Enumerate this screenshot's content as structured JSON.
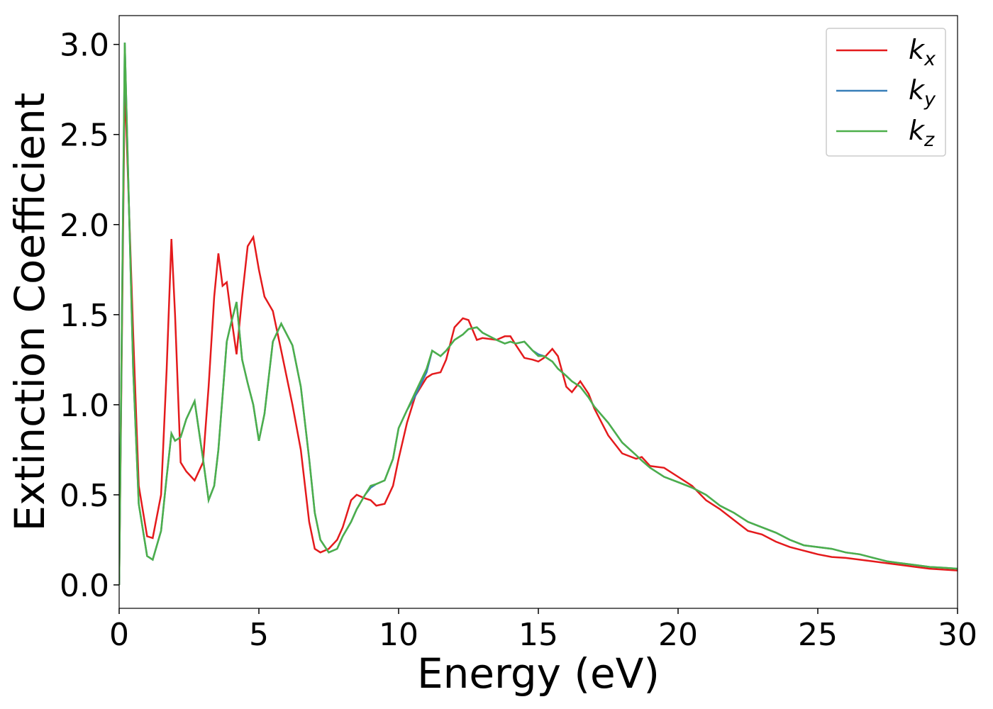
{
  "chart_data": {
    "type": "line",
    "xlabel": "Energy (eV)",
    "ylabel": "Extinction Coefficient",
    "x": [
      0,
      0.2,
      0.5,
      0.7,
      1.0,
      1.2,
      1.5,
      1.7,
      1.87,
      2.0,
      2.2,
      2.4,
      2.7,
      3.0,
      3.2,
      3.4,
      3.55,
      3.7,
      3.85,
      4.0,
      4.2,
      4.4,
      4.6,
      4.8,
      5.0,
      5.2,
      5.5,
      5.8,
      6.2,
      6.5,
      6.8,
      7.0,
      7.2,
      7.5,
      7.8,
      8.0,
      8.3,
      8.5,
      8.8,
      9.0,
      9.2,
      9.5,
      9.8,
      10.0,
      10.3,
      10.6,
      11.0,
      11.2,
      11.5,
      11.7,
      12.0,
      12.3,
      12.5,
      12.8,
      13.0,
      13.5,
      13.8,
      14.0,
      14.2,
      14.5,
      14.8,
      15.0,
      15.2,
      15.5,
      15.7,
      16.0,
      16.2,
      16.5,
      16.8,
      17.0,
      17.5,
      18.0,
      18.5,
      18.7,
      19.0,
      19.5,
      20.0,
      20.5,
      21.0,
      21.5,
      22.0,
      22.5,
      23.0,
      23.5,
      24.0,
      24.5,
      25.0,
      25.5,
      26.0,
      26.5,
      27.0,
      27.5,
      28.0,
      28.5,
      29.0,
      29.5,
      30.0
    ],
    "series": [
      {
        "name": "kx",
        "color": "#e41a1c",
        "values": [
          0,
          2.8,
          1.4,
          0.55,
          0.27,
          0.26,
          0.5,
          1.2,
          1.92,
          1.5,
          0.68,
          0.63,
          0.58,
          0.68,
          1.1,
          1.6,
          1.84,
          1.66,
          1.68,
          1.5,
          1.28,
          1.6,
          1.88,
          1.93,
          1.75,
          1.6,
          1.52,
          1.3,
          1.0,
          0.75,
          0.35,
          0.2,
          0.18,
          0.2,
          0.25,
          0.32,
          0.47,
          0.5,
          0.48,
          0.47,
          0.44,
          0.45,
          0.55,
          0.7,
          0.9,
          1.05,
          1.15,
          1.17,
          1.18,
          1.25,
          1.43,
          1.48,
          1.47,
          1.36,
          1.37,
          1.36,
          1.38,
          1.38,
          1.33,
          1.26,
          1.25,
          1.24,
          1.26,
          1.31,
          1.27,
          1.1,
          1.07,
          1.13,
          1.06,
          0.98,
          0.83,
          0.73,
          0.7,
          0.71,
          0.66,
          0.65,
          0.6,
          0.55,
          0.47,
          0.42,
          0.36,
          0.3,
          0.28,
          0.24,
          0.21,
          0.19,
          0.17,
          0.155,
          0.15,
          0.14,
          0.13,
          0.12,
          0.11,
          0.1,
          0.09,
          0.085,
          0.08
        ]
      },
      {
        "name": "ky",
        "color": "#377eb8",
        "values": [
          0,
          3.01,
          1.2,
          0.45,
          0.16,
          0.14,
          0.3,
          0.6,
          0.84,
          0.8,
          0.82,
          0.92,
          1.02,
          0.7,
          0.47,
          0.55,
          0.75,
          1.05,
          1.35,
          1.45,
          1.57,
          1.25,
          1.12,
          1.0,
          0.8,
          0.95,
          1.35,
          1.45,
          1.33,
          1.1,
          0.7,
          0.4,
          0.25,
          0.18,
          0.2,
          0.27,
          0.35,
          0.42,
          0.5,
          0.54,
          0.56,
          0.58,
          0.7,
          0.87,
          0.97,
          1.05,
          1.18,
          1.3,
          1.27,
          1.3,
          1.36,
          1.39,
          1.42,
          1.43,
          1.4,
          1.36,
          1.34,
          1.35,
          1.34,
          1.35,
          1.3,
          1.28,
          1.27,
          1.24,
          1.2,
          1.16,
          1.13,
          1.1,
          1.04,
          0.99,
          0.9,
          0.79,
          0.72,
          0.69,
          0.65,
          0.6,
          0.57,
          0.54,
          0.5,
          0.44,
          0.4,
          0.35,
          0.32,
          0.29,
          0.25,
          0.22,
          0.21,
          0.2,
          0.18,
          0.17,
          0.15,
          0.13,
          0.12,
          0.11,
          0.1,
          0.095,
          0.09
        ]
      },
      {
        "name": "kz",
        "color": "#4daf4a",
        "values": [
          0,
          3.01,
          1.2,
          0.45,
          0.16,
          0.14,
          0.3,
          0.6,
          0.84,
          0.8,
          0.82,
          0.92,
          1.02,
          0.7,
          0.47,
          0.55,
          0.75,
          1.05,
          1.35,
          1.45,
          1.57,
          1.25,
          1.12,
          1.0,
          0.8,
          0.95,
          1.35,
          1.45,
          1.33,
          1.1,
          0.7,
          0.4,
          0.25,
          0.18,
          0.2,
          0.27,
          0.35,
          0.42,
          0.5,
          0.55,
          0.56,
          0.58,
          0.7,
          0.87,
          0.97,
          1.07,
          1.2,
          1.3,
          1.27,
          1.3,
          1.36,
          1.39,
          1.42,
          1.43,
          1.4,
          1.36,
          1.34,
          1.35,
          1.34,
          1.35,
          1.3,
          1.27,
          1.27,
          1.24,
          1.2,
          1.16,
          1.13,
          1.1,
          1.04,
          0.99,
          0.9,
          0.79,
          0.72,
          0.69,
          0.65,
          0.6,
          0.57,
          0.54,
          0.5,
          0.44,
          0.4,
          0.35,
          0.32,
          0.29,
          0.25,
          0.22,
          0.21,
          0.2,
          0.18,
          0.17,
          0.15,
          0.13,
          0.12,
          0.11,
          0.1,
          0.095,
          0.09
        ]
      }
    ],
    "xlim": [
      0,
      30
    ],
    "xticks": [
      0,
      5,
      10,
      15,
      20,
      25,
      30
    ],
    "ylim": [
      -0.13,
      3.16
    ],
    "yticks": [
      {
        "value": 0,
        "label": "0.0"
      },
      {
        "value": 0.5,
        "label": "0.5"
      },
      {
        "value": 1,
        "label": "1.0"
      },
      {
        "value": 1.5,
        "label": "1.5"
      },
      {
        "value": 2,
        "label": "2.0"
      },
      {
        "value": 2.5,
        "label": "2.5"
      },
      {
        "value": 3,
        "label": "3.0"
      }
    ],
    "legend": "upper right",
    "grid": false
  }
}
